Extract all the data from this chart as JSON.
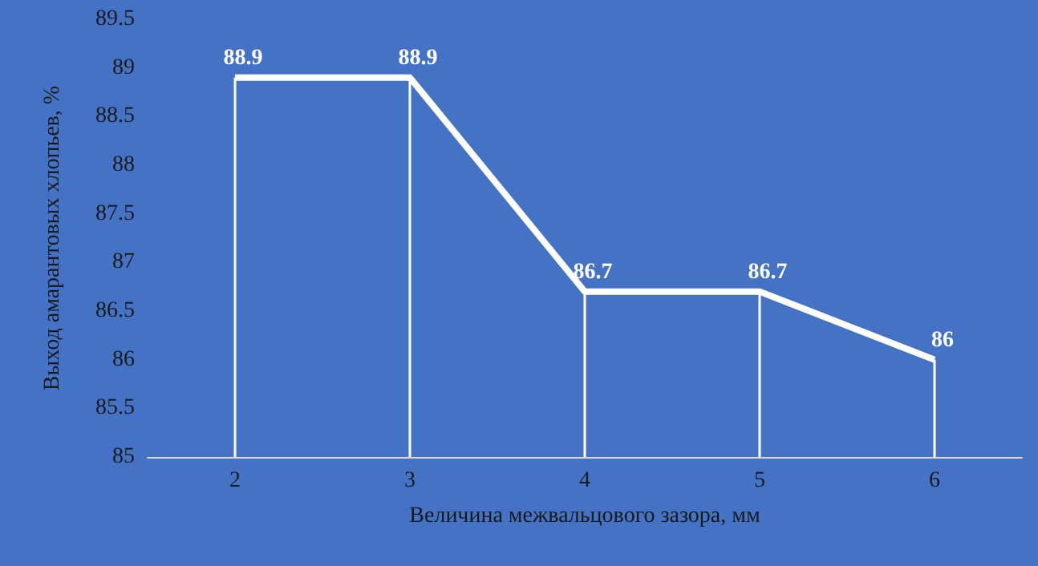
{
  "chart_data": {
    "type": "line",
    "xlabel": "Величина межвальцового зазора, мм",
    "ylabel": "Выход амарантовых хлопьев, %",
    "categories": [
      "2",
      "3",
      "4",
      "5",
      "6"
    ],
    "series": [
      {
        "color": "#ffffff",
        "values": [
          88.9,
          88.9,
          86.7,
          86.7,
          86
        ],
        "value_labels": [
          "88.9",
          "88.9",
          "86.7",
          "86.7",
          "86"
        ]
      },
      {
        "type": "bar",
        "color": "#ffffff",
        "values": [
          88.9,
          88.9,
          86.7,
          86.7,
          86
        ]
      }
    ],
    "ylim": [
      85,
      89.5
    ],
    "yticks": [
      85,
      85.5,
      86,
      86.5,
      87,
      87.5,
      88,
      88.5,
      89,
      89.5
    ],
    "grid": false,
    "marker": "none",
    "line_style": "solid"
  }
}
